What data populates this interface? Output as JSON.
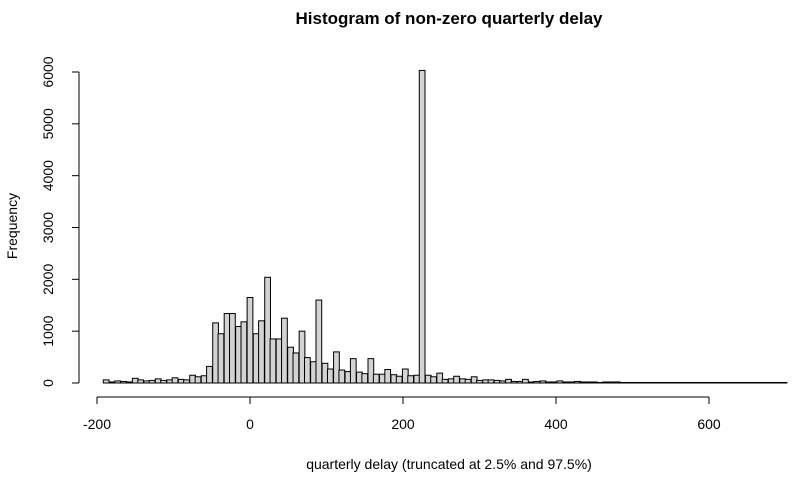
{
  "chart_data": {
    "type": "bar",
    "title": "Histogram of non-zero quarterly delay",
    "xlabel": "quarterly delay (truncated at 2.5% and 97.5%)",
    "ylabel": "Frequency",
    "xlim": [
      -200,
      710
    ],
    "ylim": [
      0,
      6000
    ],
    "bin_width": 7.5,
    "x_ticks": [
      -200,
      0,
      200,
      400,
      600
    ],
    "x_tick_labels": [
      "-200",
      "0",
      "200",
      "400",
      "600"
    ],
    "y_ticks": [
      0,
      1000,
      2000,
      3000,
      4000,
      5000,
      6000
    ],
    "y_tick_labels": [
      "0",
      "1000",
      "2000",
      "3000",
      "4000",
      "5000",
      "6000"
    ],
    "x": [
      -188,
      -180,
      -173,
      -165,
      -158,
      -150,
      -143,
      -135,
      -128,
      -120,
      -113,
      -105,
      -98,
      -90,
      -83,
      -75,
      -68,
      -60,
      -53,
      -45,
      -38,
      -30,
      -23,
      -15,
      -8,
      0,
      8,
      15,
      23,
      30,
      38,
      45,
      53,
      60,
      68,
      75,
      83,
      90,
      98,
      105,
      113,
      120,
      128,
      135,
      143,
      150,
      158,
      165,
      173,
      180,
      188,
      195,
      203,
      210,
      218,
      225,
      233,
      240,
      248,
      255,
      263,
      270,
      278,
      285,
      293,
      300,
      308,
      315,
      323,
      330,
      338,
      345,
      353,
      360,
      368,
      375,
      383,
      390,
      398,
      405,
      413,
      420,
      428,
      435,
      443,
      450,
      458,
      465,
      473,
      480,
      488,
      495,
      503,
      510,
      518,
      525,
      533,
      540,
      548,
      555,
      563,
      570,
      578,
      585,
      593,
      600,
      608,
      615,
      623,
      630,
      638,
      645,
      653,
      660,
      668,
      675,
      683,
      690,
      698
    ],
    "values": [
      60,
      20,
      40,
      30,
      20,
      90,
      60,
      40,
      50,
      80,
      50,
      60,
      100,
      70,
      60,
      150,
      120,
      140,
      320,
      1160,
      950,
      1340,
      1340,
      1090,
      1180,
      1650,
      950,
      1200,
      2040,
      850,
      850,
      1250,
      690,
      580,
      1000,
      490,
      410,
      1600,
      380,
      270,
      600,
      250,
      220,
      470,
      210,
      180,
      470,
      170,
      170,
      260,
      160,
      130,
      270,
      140,
      150,
      6030,
      150,
      120,
      190,
      70,
      80,
      130,
      80,
      70,
      120,
      50,
      60,
      60,
      50,
      40,
      70,
      30,
      30,
      70,
      20,
      30,
      40,
      20,
      20,
      40,
      20,
      20,
      30,
      20,
      20,
      20,
      10,
      20,
      20,
      20,
      10,
      10,
      10,
      10,
      10,
      10,
      10,
      10,
      10,
      10,
      10,
      10,
      10,
      10,
      10,
      10,
      10,
      10,
      10,
      10,
      10,
      10,
      10,
      10,
      10,
      10,
      10,
      10,
      10
    ]
  }
}
